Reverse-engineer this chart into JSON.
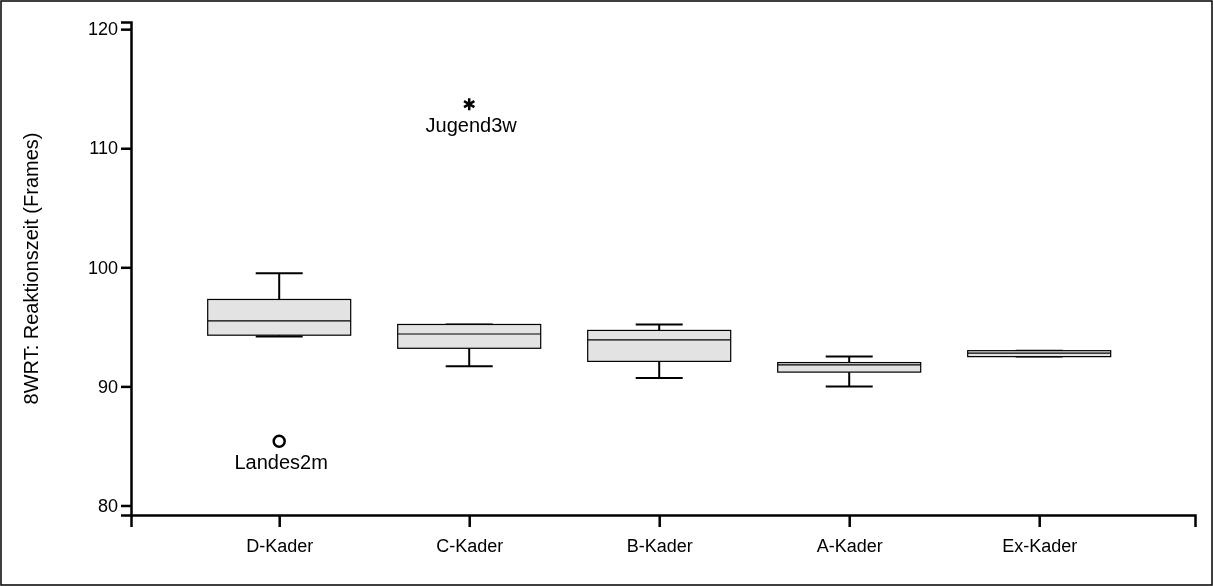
{
  "chart_data": {
    "type": "box",
    "ylabel": "8WRT: Reaktionszeit (Frames)",
    "categories": [
      "D-Kader",
      "C-Kader",
      "B-Kader",
      "A-Kader",
      "Ex-Kader"
    ],
    "boxes": [
      {
        "low": 94.2,
        "q1": 94.3,
        "median": 95.5,
        "q3": 97.3,
        "high": 99.5,
        "outliers": [
          85.4
        ]
      },
      {
        "low": 91.7,
        "q1": 93.2,
        "median": 94.4,
        "q3": 95.2,
        "high": 95.2,
        "outliers": [
          113.7
        ]
      },
      {
        "low": 90.7,
        "q1": 92.1,
        "median": 93.9,
        "q3": 94.7,
        "high": 95.2
      },
      {
        "low": 90.0,
        "q1": 91.2,
        "median": 91.8,
        "q3": 92.0,
        "high": 92.5
      },
      {
        "low": 92.5,
        "q1": 92.5,
        "median": 92.8,
        "q3": 93.0,
        "high": 93.0
      }
    ],
    "color": "#e3e3e3",
    "ylim": [
      79.2,
      120.6
    ],
    "yticks": [
      80,
      90,
      100,
      110,
      120
    ],
    "annotations": [
      "Landes2m",
      "Jugend3w"
    ]
  }
}
